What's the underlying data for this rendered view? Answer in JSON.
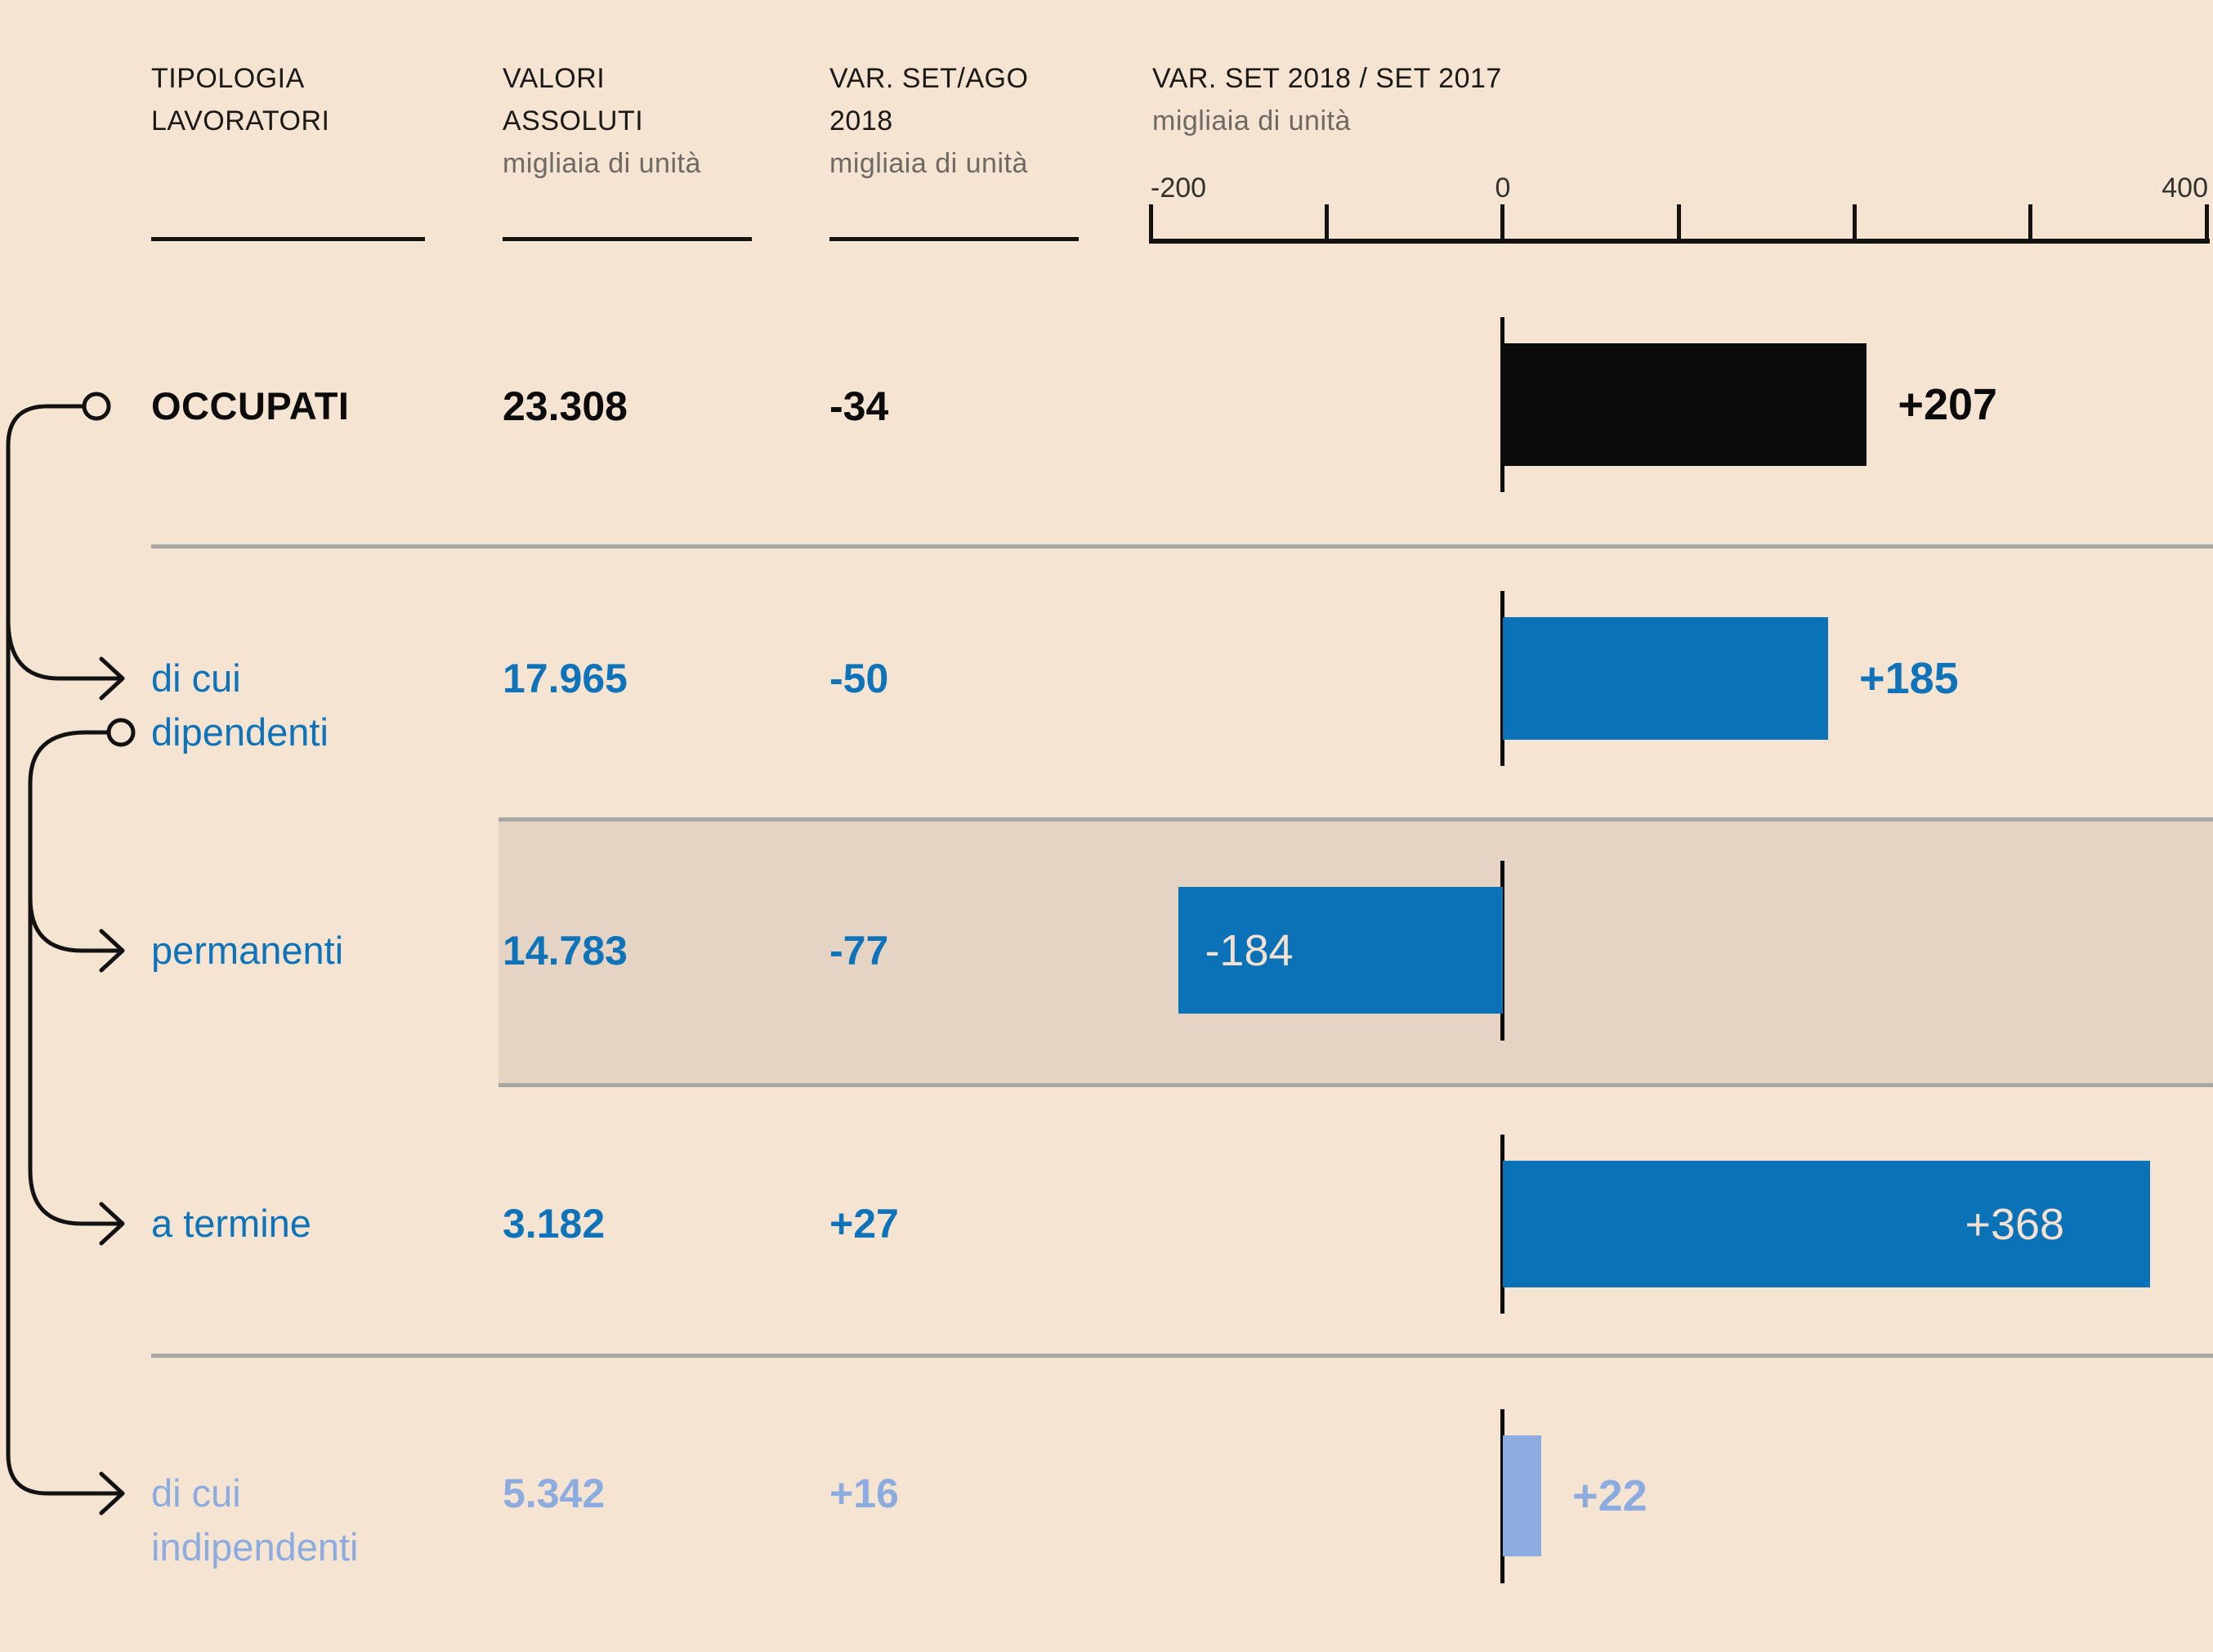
{
  "columns": [
    {
      "title_lines": [
        "TIPOLOGIA",
        "LAVORATORI"
      ],
      "subtitle": ""
    },
    {
      "title_lines": [
        "VALORI",
        "ASSOLUTI"
      ],
      "subtitle": "migliaia di unità"
    },
    {
      "title_lines": [
        "VAR. SET/AGO",
        "2018"
      ],
      "subtitle": "migliaia di unità"
    },
    {
      "title_lines": [
        "VAR. SET 2018 / SET 2017"
      ],
      "subtitle": "migliaia di unità"
    }
  ],
  "axis": {
    "tick_labels": [
      "-200",
      "0",
      "400"
    ]
  },
  "rows": [
    {
      "label_lines": [
        "OCCUPATI"
      ],
      "value_abs": "23.308",
      "value_mom": "-34",
      "bar_label": "+207"
    },
    {
      "label_lines": [
        "di cui",
        "dipendenti"
      ],
      "value_abs": "17.965",
      "value_mom": "-50",
      "bar_label": "+185"
    },
    {
      "label_lines": [
        "permanenti"
      ],
      "value_abs": "14.783",
      "value_mom": "-77",
      "bar_label": "-184"
    },
    {
      "label_lines": [
        "a termine"
      ],
      "value_abs": "3.182",
      "value_mom": "+27",
      "bar_label": "+368"
    },
    {
      "label_lines": [
        "di cui",
        "indipendenti"
      ],
      "value_abs": "5.342",
      "value_mom": "+16",
      "bar_label": "+22"
    }
  ],
  "chart_data": {
    "type": "bar",
    "orientation": "horizontal",
    "title": "VAR. SET 2018 / SET 2017",
    "unit": "migliaia di unità",
    "xlim": [
      -200,
      400
    ],
    "axis_ticks": [
      -200,
      -100,
      0,
      100,
      200,
      300,
      400
    ],
    "categories": [
      "OCCUPATI",
      "di cui dipendenti",
      "permanenti",
      "a termine",
      "di cui indipendenti"
    ],
    "values": [
      207,
      185,
      -184,
      368,
      22
    ],
    "bar_colors": [
      "#0b0b0b",
      "#0b72b8",
      "#0b72b8",
      "#0b72b8",
      "#8cabdf"
    ],
    "legend": "none",
    "grid": false,
    "table": {
      "col_headers": [
        "TIPOLOGIA LAVORATORI",
        "VALORI ASSOLUTI (migliaia di unità)",
        "VAR. SET/AGO 2018 (migliaia di unità)",
        "VAR. SET 2018 / SET 2017 (migliaia di unità)"
      ],
      "rows": [
        [
          "OCCUPATI",
          "23.308",
          "-34",
          "+207"
        ],
        [
          "di cui dipendenti",
          "17.965",
          "-50",
          "+185"
        ],
        [
          "permanenti",
          "14.783",
          "-77",
          "-184"
        ],
        [
          "a termine",
          "3.182",
          "+27",
          "+368"
        ],
        [
          "di cui indipendenti",
          "5.342",
          "+16",
          "+22"
        ]
      ]
    }
  },
  "colors": {
    "background": "#f6e4d3",
    "band": "#e5d4c3",
    "gray_line": "#a9a7a4",
    "black": "#0b0b0b",
    "blue": "#0b72b8",
    "light_blue": "#8cabdf",
    "cream_label": "#f3e2d1"
  }
}
